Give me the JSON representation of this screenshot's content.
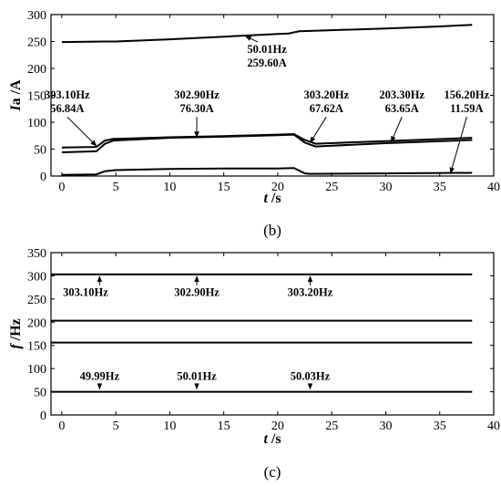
{
  "chart_data": [
    {
      "type": "line",
      "panel_label": "(b)",
      "xlabel_var": "t",
      "xlabel_unit": " /s",
      "ylabel_var": "I",
      "ylabel_unit": "a /A",
      "xlim": [
        -1,
        40
      ],
      "ylim": [
        0,
        300
      ],
      "xticks": [
        0,
        5,
        10,
        15,
        20,
        25,
        30,
        35,
        40
      ],
      "yticks": [
        0,
        50,
        100,
        150,
        200,
        250,
        300
      ],
      "series": [
        {
          "x": [
            0,
            4,
            5,
            10,
            15,
            20,
            21,
            22,
            25,
            30,
            35,
            38
          ],
          "y": [
            249,
            250,
            250,
            254,
            259,
            264,
            265,
            269,
            271,
            274,
            278,
            281
          ]
        },
        {
          "x": [
            0,
            3.2,
            4,
            4.8,
            10,
            15,
            20,
            21.5,
            22.5,
            23.5,
            30,
            38
          ],
          "y": [
            53,
            54,
            66,
            69,
            72,
            74,
            77,
            78,
            67,
            60,
            65,
            71
          ]
        },
        {
          "x": [
            0,
            3.2,
            4,
            4.8,
            10,
            15,
            20,
            21.5,
            22.5,
            23.5,
            30,
            38
          ],
          "y": [
            44,
            46,
            60,
            66,
            71,
            73,
            76,
            77,
            62,
            55,
            61,
            67
          ]
        },
        {
          "x": [
            0,
            3.2,
            4,
            5,
            10,
            15,
            20,
            21.5,
            22.5,
            23,
            30,
            38
          ],
          "y": [
            2,
            3,
            9,
            11,
            13,
            14,
            14,
            15,
            5,
            4,
            5,
            6
          ]
        }
      ],
      "annotations": [
        {
          "freq": "50.01Hz",
          "amp": "259.60A",
          "point": [
            17,
            260
          ],
          "text_at": [
            19,
            205
          ]
        },
        {
          "freq": "303.10Hz",
          "amp": "56.84A",
          "point": [
            3.2,
            56
          ],
          "text_at": [
            0.5,
            120
          ]
        },
        {
          "freq": "302.90Hz",
          "amp": "76.30A",
          "point": [
            12.5,
            72
          ],
          "text_at": [
            12.5,
            120
          ]
        },
        {
          "freq": "303.20Hz",
          "amp": "67.62A",
          "point": [
            23,
            62
          ],
          "text_at": [
            24.5,
            120
          ]
        },
        {
          "freq": "203.30Hz",
          "amp": "63.65A",
          "point": [
            30.5,
            63
          ],
          "text_at": [
            31.5,
            120
          ]
        },
        {
          "freq": "156.20Hz",
          "amp": "11.59A",
          "point": [
            36,
            5
          ],
          "text_at": [
            37.5,
            120
          ]
        }
      ]
    },
    {
      "type": "line",
      "panel_label": "(c)",
      "xlabel_var": "t",
      "xlabel_unit": " /s",
      "ylabel_var": "f",
      "ylabel_unit": " /Hz",
      "xlim": [
        -1,
        40
      ],
      "ylim": [
        0,
        350
      ],
      "xticks": [
        0,
        5,
        10,
        15,
        20,
        25,
        30,
        35,
        40
      ],
      "yticks": [
        0,
        50,
        100,
        150,
        200,
        250,
        300,
        350
      ],
      "series": [
        {
          "x": [
            -1,
            38
          ],
          "y": [
            303.1,
            303.1
          ]
        },
        {
          "x": [
            -1,
            38
          ],
          "y": [
            203.3,
            203.3
          ]
        },
        {
          "x": [
            -1,
            38
          ],
          "y": [
            156.2,
            156.2
          ]
        },
        {
          "x": [
            -1,
            38
          ],
          "y": [
            50.0,
            50.0
          ]
        }
      ],
      "annotations": [
        {
          "text": "303.10Hz",
          "point": [
            3.5,
            303
          ],
          "text_at": [
            2.2,
            264
          ],
          "dir": "up"
        },
        {
          "text": "302.90Hz",
          "point": [
            12.5,
            303
          ],
          "text_at": [
            12.5,
            264
          ],
          "dir": "up"
        },
        {
          "text": "303.20Hz",
          "point": [
            23,
            303
          ],
          "text_at": [
            23,
            264
          ],
          "dir": "up"
        },
        {
          "text": "49.99Hz",
          "point": [
            3.5,
            52
          ],
          "text_at": [
            3.5,
            84
          ],
          "dir": "down"
        },
        {
          "text": "50.01Hz",
          "point": [
            12.5,
            52
          ],
          "text_at": [
            12.5,
            84
          ],
          "dir": "down"
        },
        {
          "text": "50.03Hz",
          "point": [
            23,
            52
          ],
          "text_at": [
            23,
            84
          ],
          "dir": "down"
        }
      ]
    }
  ]
}
